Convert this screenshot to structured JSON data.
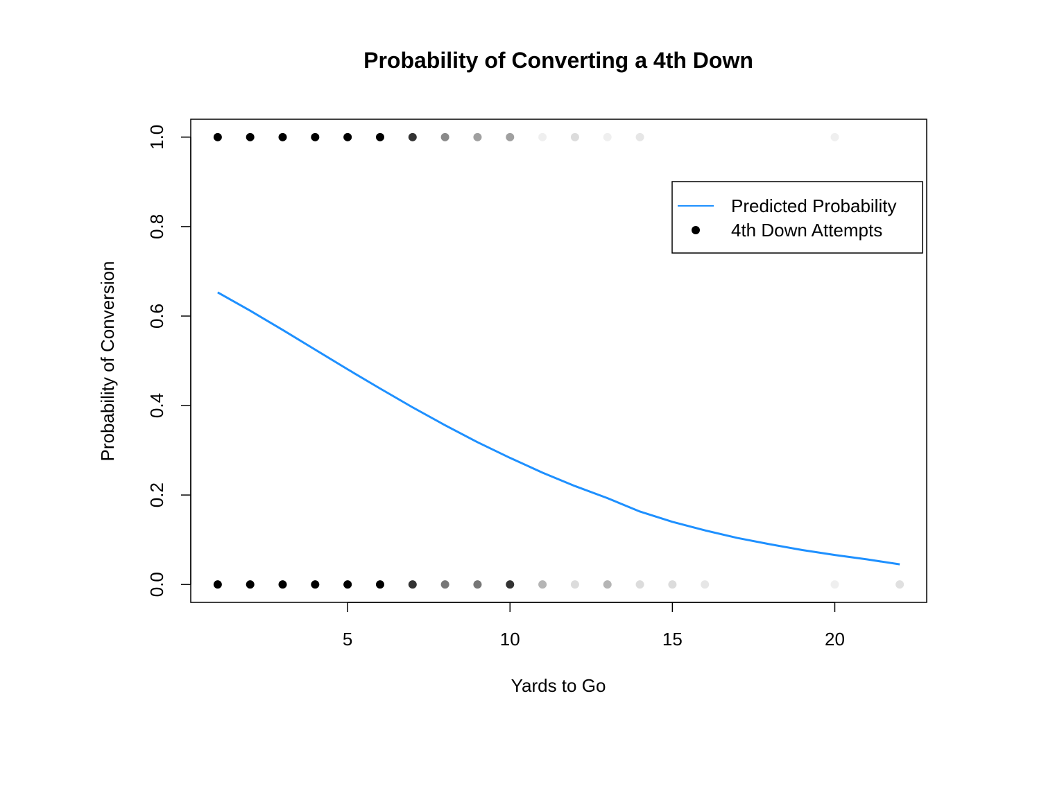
{
  "chart_data": {
    "type": "scatter",
    "title": "Probability of Converting a 4th Down",
    "xlabel": "Yards to Go",
    "ylabel": "Probability of Conversion",
    "xlim": [
      0.17,
      22.83
    ],
    "ylim": [
      -0.04,
      1.04
    ],
    "x_ticks": [
      5,
      10,
      15,
      20
    ],
    "x_tick_labels": [
      "5",
      "10",
      "15",
      "20"
    ],
    "y_ticks": [
      0.0,
      0.2,
      0.4,
      0.6,
      0.8,
      1.0
    ],
    "y_tick_labels": [
      "0.0",
      "0.2",
      "0.4",
      "0.6",
      "0.8",
      "1.0"
    ],
    "grid": false,
    "legend": {
      "position": "top-right",
      "entries": [
        {
          "label": "Predicted Probability",
          "kind": "line",
          "color": "#1E90FF"
        },
        {
          "label": "4th Down Attempts",
          "kind": "point",
          "color": "#000000"
        }
      ]
    },
    "series": [
      {
        "name": "Predicted Probability",
        "kind": "line",
        "color": "#1E90FF",
        "x": [
          1,
          2,
          3,
          4,
          5,
          6,
          7,
          8,
          9,
          10,
          11,
          12,
          13,
          14,
          15,
          16,
          17,
          18,
          19,
          20,
          21,
          22
        ],
        "y": [
          0.653,
          0.612,
          0.569,
          0.525,
          0.481,
          0.438,
          0.396,
          0.356,
          0.318,
          0.283,
          0.25,
          0.22,
          0.193,
          0.163,
          0.14,
          0.121,
          0.104,
          0.09,
          0.077,
          0.066,
          0.056,
          0.045
        ]
      },
      {
        "name": "4th Down Attempts",
        "kind": "points",
        "points": [
          {
            "x": 1,
            "y": 1,
            "color": "#000000"
          },
          {
            "x": 2,
            "y": 1,
            "color": "#000000"
          },
          {
            "x": 3,
            "y": 1,
            "color": "#000000"
          },
          {
            "x": 4,
            "y": 1,
            "color": "#000000"
          },
          {
            "x": 5,
            "y": 1,
            "color": "#000000"
          },
          {
            "x": 6,
            "y": 1,
            "color": "#000000"
          },
          {
            "x": 7,
            "y": 1,
            "color": "#333333"
          },
          {
            "x": 8,
            "y": 1,
            "color": "#8a8a8a"
          },
          {
            "x": 9,
            "y": 1,
            "color": "#a0a0a0"
          },
          {
            "x": 10,
            "y": 1,
            "color": "#a0a0a0"
          },
          {
            "x": 11,
            "y": 1,
            "color": "#efefef"
          },
          {
            "x": 12,
            "y": 1,
            "color": "#dcdcdc"
          },
          {
            "x": 13,
            "y": 1,
            "color": "#efefef"
          },
          {
            "x": 14,
            "y": 1,
            "color": "#e6e6e6"
          },
          {
            "x": 20,
            "y": 1,
            "color": "#efefef"
          },
          {
            "x": 1,
            "y": 0,
            "color": "#000000"
          },
          {
            "x": 2,
            "y": 0,
            "color": "#000000"
          },
          {
            "x": 3,
            "y": 0,
            "color": "#000000"
          },
          {
            "x": 4,
            "y": 0,
            "color": "#000000"
          },
          {
            "x": 5,
            "y": 0,
            "color": "#000000"
          },
          {
            "x": 6,
            "y": 0,
            "color": "#000000"
          },
          {
            "x": 7,
            "y": 0,
            "color": "#333333"
          },
          {
            "x": 8,
            "y": 0,
            "color": "#777777"
          },
          {
            "x": 9,
            "y": 0,
            "color": "#777777"
          },
          {
            "x": 10,
            "y": 0,
            "color": "#333333"
          },
          {
            "x": 11,
            "y": 0,
            "color": "#b5b5b5"
          },
          {
            "x": 12,
            "y": 0,
            "color": "#dcdcdc"
          },
          {
            "x": 13,
            "y": 0,
            "color": "#b5b5b5"
          },
          {
            "x": 14,
            "y": 0,
            "color": "#dcdcdc"
          },
          {
            "x": 15,
            "y": 0,
            "color": "#dcdcdc"
          },
          {
            "x": 16,
            "y": 0,
            "color": "#e6e6e6"
          },
          {
            "x": 20,
            "y": 0,
            "color": "#efefef"
          },
          {
            "x": 22,
            "y": 0,
            "color": "#e0e0e0"
          }
        ]
      }
    ]
  }
}
